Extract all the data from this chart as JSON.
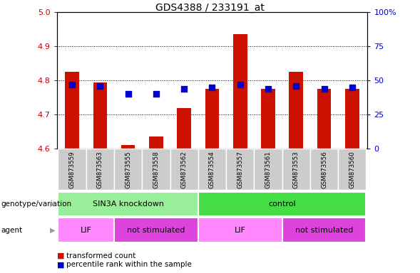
{
  "title": "GDS4388 / 233191_at",
  "samples": [
    "GSM873559",
    "GSM873563",
    "GSM873555",
    "GSM873558",
    "GSM873562",
    "GSM873554",
    "GSM873557",
    "GSM873561",
    "GSM873553",
    "GSM873556",
    "GSM873560"
  ],
  "red_values": [
    4.825,
    4.795,
    4.61,
    4.635,
    4.72,
    4.775,
    4.935,
    4.775,
    4.825,
    4.775,
    4.775
  ],
  "blue_pct": [
    47,
    46,
    40,
    40,
    44,
    45,
    47,
    44,
    46,
    44,
    45
  ],
  "ylim_left": [
    4.6,
    5.0
  ],
  "ylim_right": [
    0,
    100
  ],
  "yticks_left": [
    4.6,
    4.7,
    4.8,
    4.9,
    5.0
  ],
  "yticks_right": [
    0,
    25,
    50,
    75,
    100
  ],
  "ytick_labels_right": [
    "0",
    "25",
    "50",
    "75",
    "100%"
  ],
  "bar_bottom": 4.6,
  "bar_color": "#CC1100",
  "dot_color": "#0000CC",
  "groups": [
    {
      "label": "SIN3A knockdown",
      "start": 0,
      "end": 5,
      "color": "#99EE99"
    },
    {
      "label": "control",
      "start": 5,
      "end": 11,
      "color": "#44DD44"
    }
  ],
  "agents": [
    {
      "label": "LIF",
      "start": 0,
      "end": 2,
      "color": "#FF88FF"
    },
    {
      "label": "not stimulated",
      "start": 2,
      "end": 5,
      "color": "#DD44DD"
    },
    {
      "label": "LIF",
      "start": 5,
      "end": 8,
      "color": "#FF88FF"
    },
    {
      "label": "not stimulated",
      "start": 8,
      "end": 11,
      "color": "#DD44DD"
    }
  ],
  "legend_red": "transformed count",
  "legend_blue": "percentile rank within the sample",
  "genotype_label": "genotype/variation",
  "agent_label": "agent",
  "left_tick_color": "#CC0000",
  "right_tick_color": "#0000CC",
  "sample_box_color": "#CCCCCC",
  "fig_width": 5.89,
  "fig_height": 3.84
}
